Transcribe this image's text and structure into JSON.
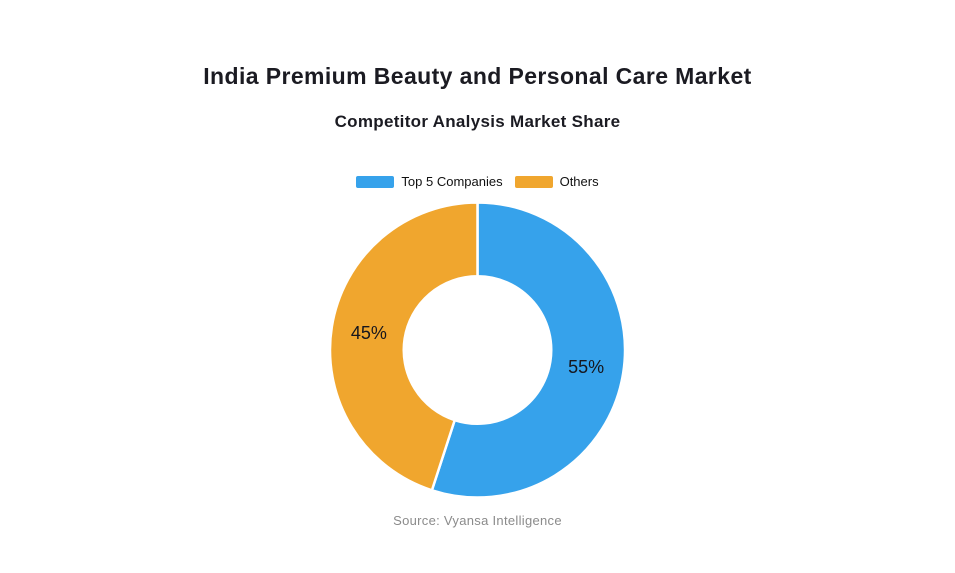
{
  "page": {
    "title": "India Premium Beauty and Personal Care Market",
    "subtitle": "Competitor Analysis Market Share",
    "source": "Source: Vyansa Intelligence",
    "background_color": "#ffffff"
  },
  "chart_data": {
    "type": "pie",
    "variant": "donut",
    "title": "India Premium Beauty and Personal Care Market",
    "subtitle": "Competitor Analysis Market Share",
    "legend_position": "top",
    "start_angle_deg": 0,
    "inner_radius_ratio": 0.5,
    "slice_gap_color": "#ffffff",
    "label_color": "#16161d",
    "series": [
      {
        "name": "Top 5 Companies",
        "value": 55,
        "label": "55%",
        "color": "#36A2EB"
      },
      {
        "name": "Others",
        "value": 45,
        "label": "45%",
        "color": "#F0A62E"
      }
    ]
  }
}
